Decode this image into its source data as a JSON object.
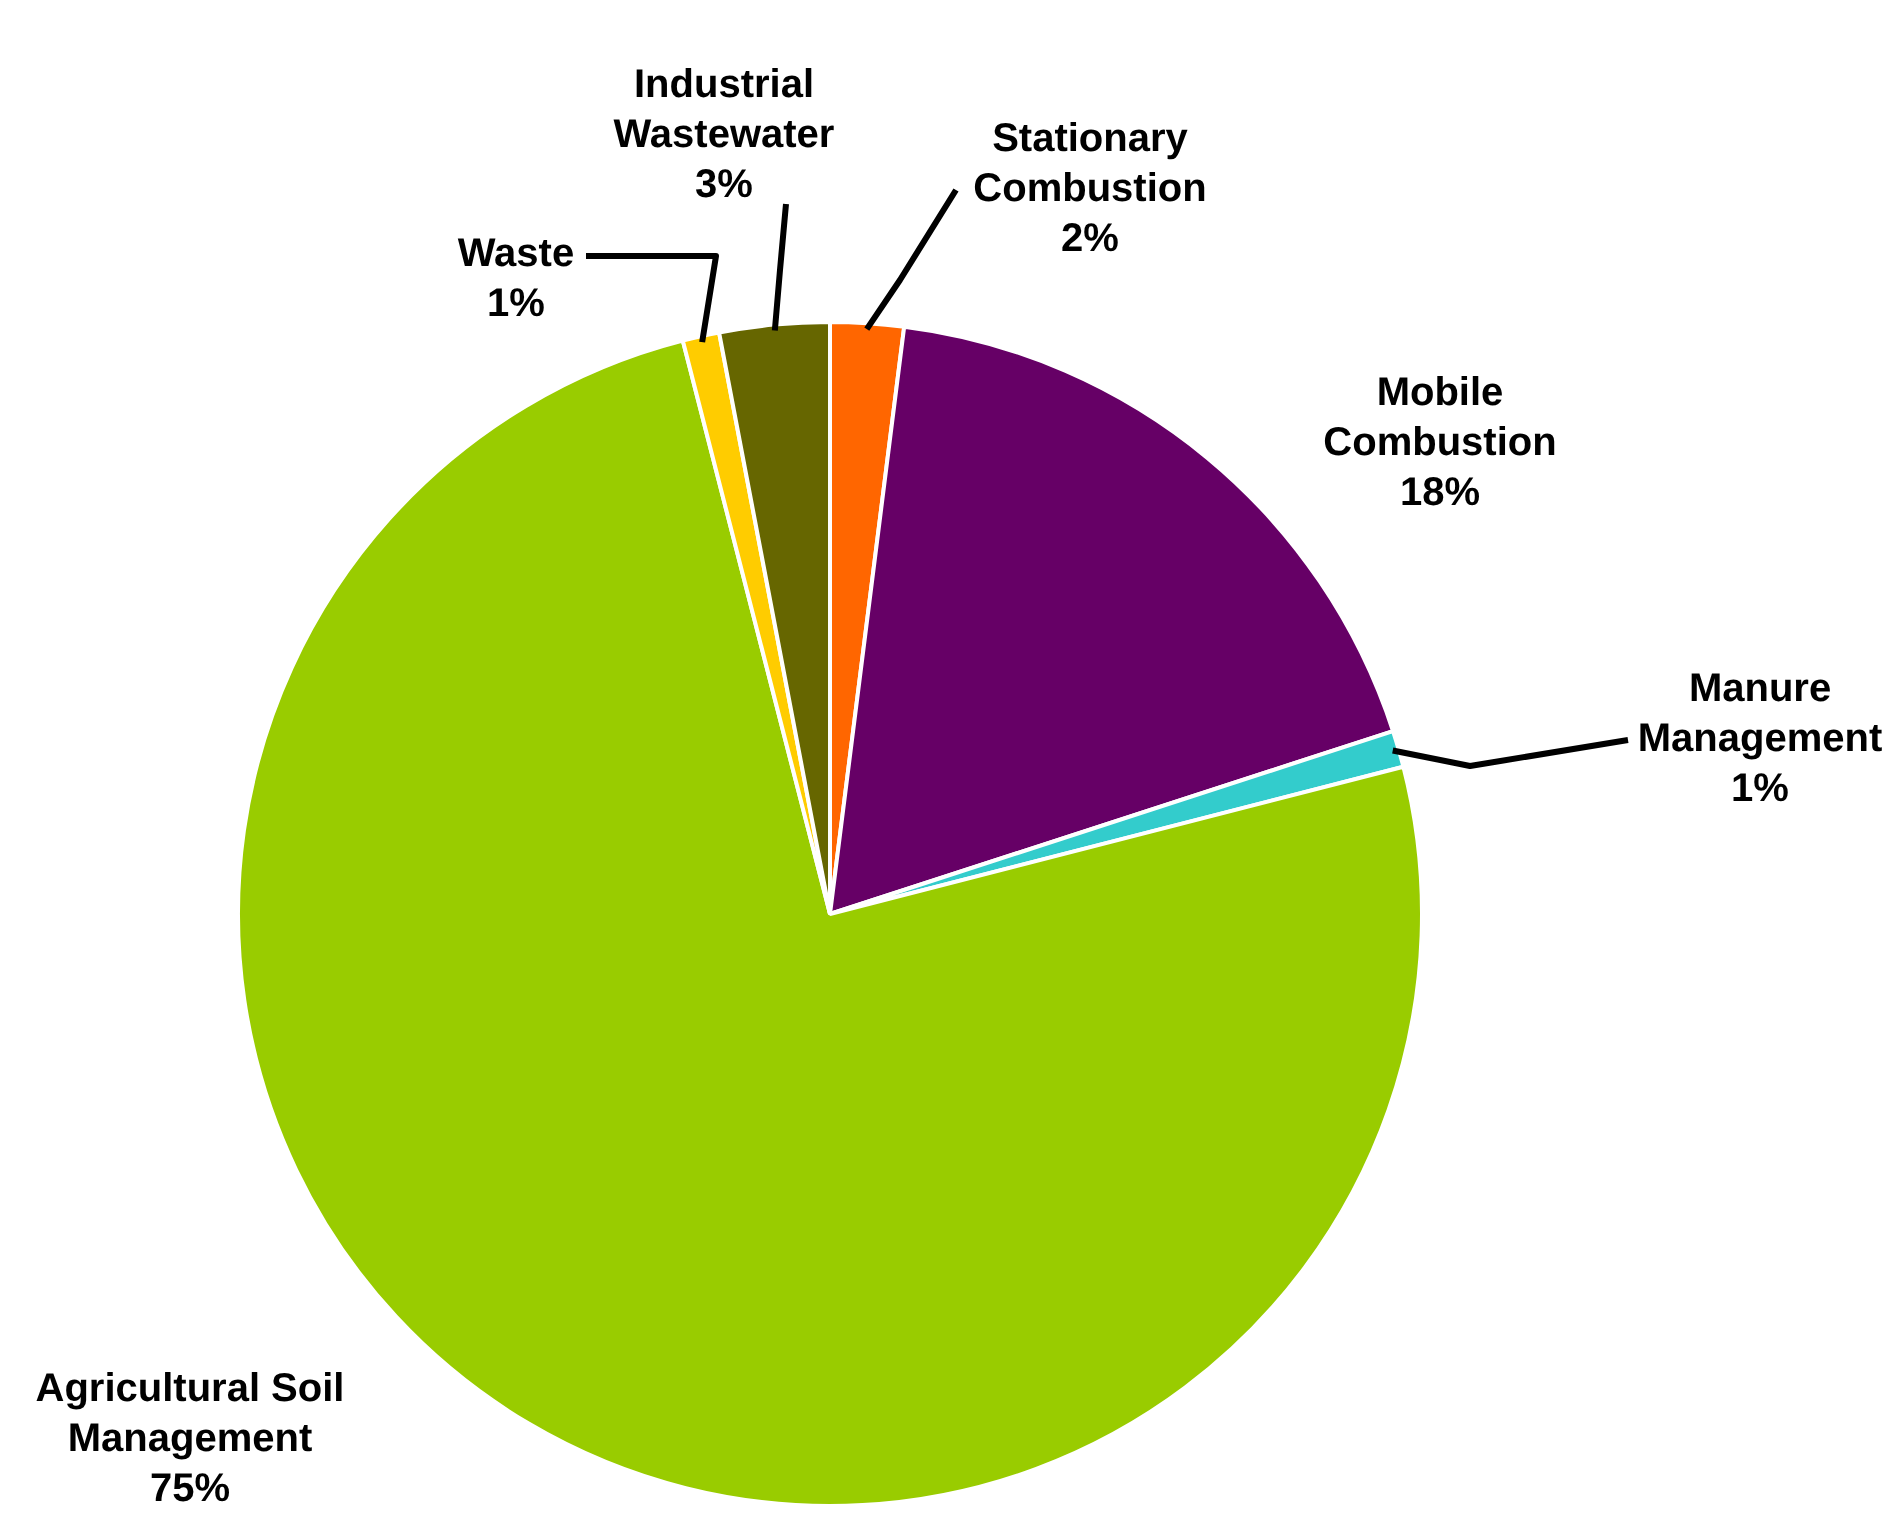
{
  "chart_data": {
    "type": "pie",
    "categories": [
      "Stationary Combustion",
      "Mobile Combustion",
      "Manure Management",
      "Agricultural Soil Management",
      "Waste",
      "Industrial Wastewater"
    ],
    "values": [
      2,
      18,
      1,
      75,
      1,
      3
    ],
    "colors": [
      "#ff6600",
      "#660066",
      "#33cccc",
      "#99cc00",
      "#ffcc00",
      "#666600"
    ],
    "value_labels": [
      "2%",
      "18%",
      "1%",
      "75%",
      "1%",
      "3%"
    ],
    "legend": false
  }
}
